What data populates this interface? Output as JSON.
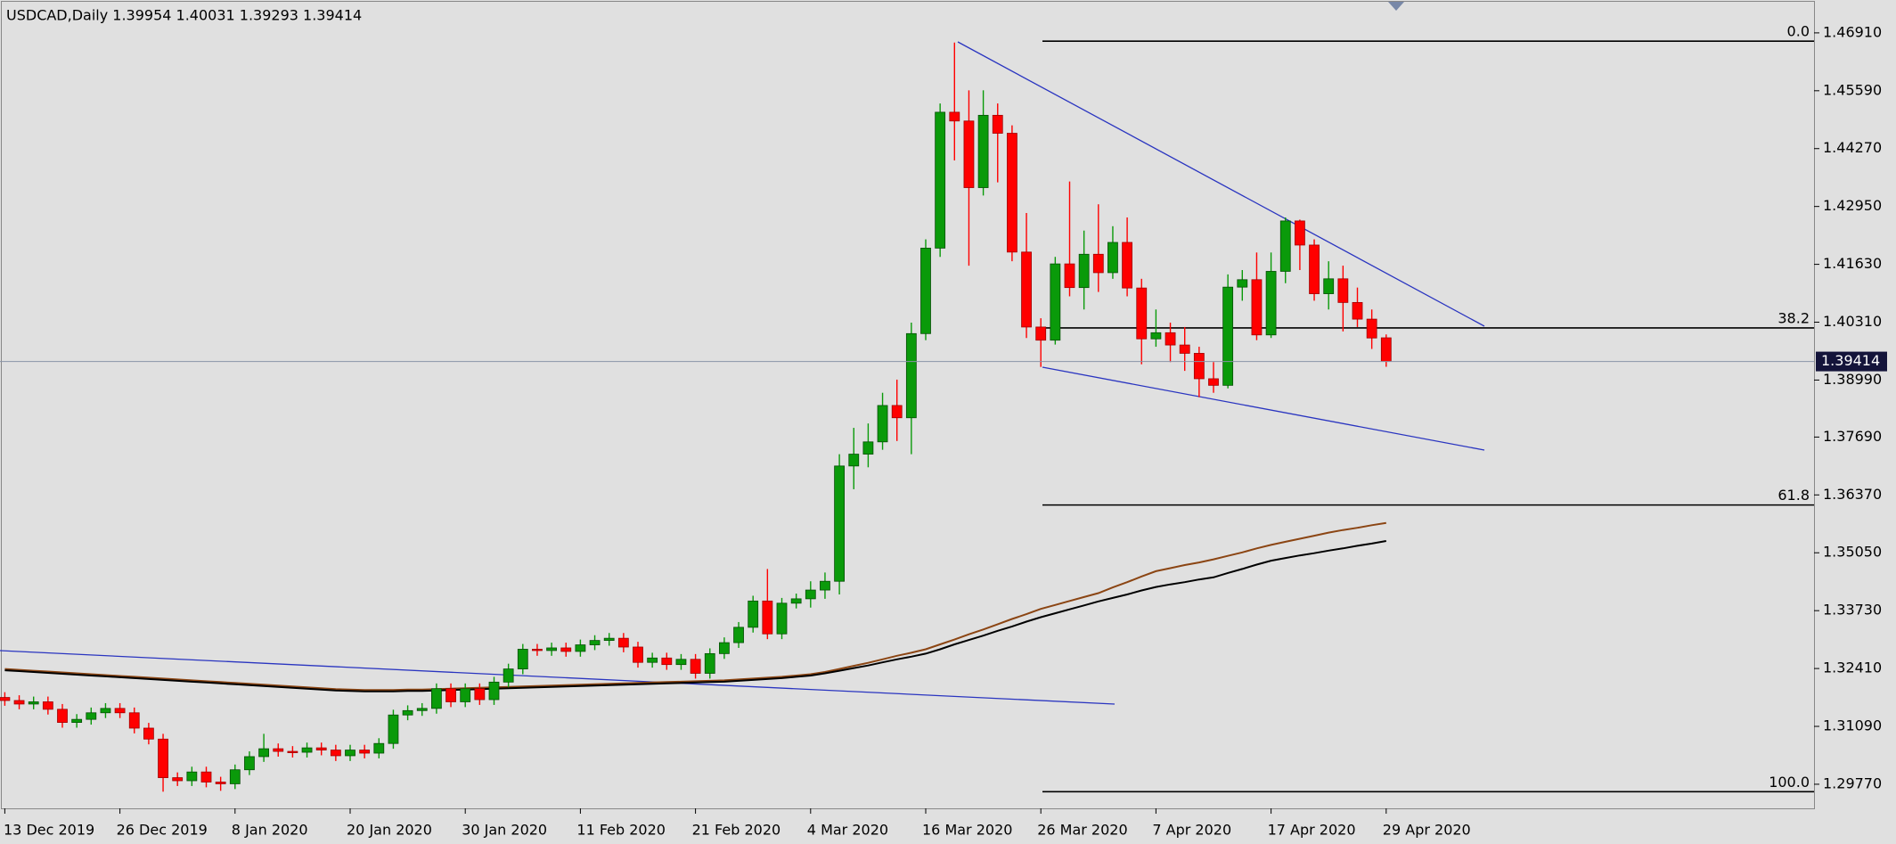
{
  "chart_data": {
    "type": "candlestick",
    "title": "USDCAD,Daily  1.39954 1.40031 1.39293 1.39414",
    "categories": [
      "13 Dec 2019",
      null,
      null,
      null,
      null,
      null,
      null,
      null,
      "26 Dec 2019",
      null,
      null,
      null,
      null,
      null,
      null,
      null,
      "8 Jan 2020",
      null,
      null,
      null,
      null,
      null,
      null,
      null,
      "20 Jan 2020",
      null,
      null,
      null,
      null,
      null,
      null,
      null,
      "30 Jan 2020",
      null,
      null,
      null,
      null,
      null,
      null,
      null,
      "11 Feb 2020",
      null,
      null,
      null,
      null,
      null,
      null,
      null,
      "21 Feb 2020",
      null,
      null,
      null,
      null,
      null,
      null,
      null,
      "4 Mar 2020",
      null,
      null,
      null,
      null,
      null,
      null,
      null,
      "16 Mar 2020",
      null,
      null,
      null,
      null,
      null,
      null,
      null,
      "26 Mar 2020",
      null,
      null,
      null,
      null,
      null,
      null,
      null,
      "7 Apr 2020",
      null,
      null,
      null,
      null,
      null,
      null,
      null,
      "17 Apr 2020",
      null,
      null,
      null,
      null,
      null,
      null,
      null,
      "29 Apr 2020"
    ],
    "open": [
      1.3175,
      1.3168,
      1.316,
      1.3165,
      1.3148,
      1.3118,
      1.3125,
      1.314,
      1.315,
      1.314,
      1.3105,
      1.308,
      1.2992,
      1.2985,
      1.3005,
      1.2982,
      1.2978,
      1.301,
      1.304,
      1.3058,
      1.3052,
      1.305,
      1.306,
      1.3055,
      1.3042,
      1.3055,
      1.3048,
      1.307,
      1.3135,
      1.3145,
      1.315,
      1.3195,
      1.3165,
      1.3195,
      1.317,
      1.321,
      1.324,
      1.3285,
      1.3282,
      1.3288,
      1.328,
      1.3295,
      1.3305,
      1.331,
      1.329,
      1.3255,
      1.3265,
      1.325,
      1.3262,
      1.323,
      1.3275,
      1.33,
      1.3335,
      1.3395,
      1.332,
      1.339,
      1.34,
      1.342,
      1.344,
      1.3703,
      1.373,
      1.3758,
      1.3841,
      1.3813,
      1.4005,
      1.42,
      1.451,
      1.449,
      1.4338,
      1.4503,
      1.4462,
      1.4191,
      1.402,
      1.399,
      1.4164,
      1.411,
      1.4186,
      1.4144,
      1.4213,
      1.4109,
      1.3993,
      1.4007,
      1.3979,
      1.396,
      1.3902,
      1.3887,
      1.4111,
      1.4128,
      1.4002,
      1.4147,
      1.4262,
      1.4207,
      1.4096,
      1.413,
      1.4076,
      1.4038,
      1.39954
    ],
    "high": [
      1.3187,
      1.318,
      1.3177,
      1.3177,
      1.316,
      1.3137,
      1.3152,
      1.3162,
      1.3162,
      1.3152,
      1.3117,
      1.3092,
      1.3004,
      1.3017,
      1.3017,
      1.2994,
      1.3022,
      1.3052,
      1.3092,
      1.307,
      1.3064,
      1.3072,
      1.3072,
      1.3067,
      1.3067,
      1.3067,
      1.3082,
      1.3147,
      1.3157,
      1.3162,
      1.3207,
      1.3207,
      1.3207,
      1.3207,
      1.3222,
      1.3252,
      1.3297,
      1.3297,
      1.33,
      1.33,
      1.3307,
      1.3317,
      1.3322,
      1.3322,
      1.3302,
      1.3277,
      1.3277,
      1.3274,
      1.3274,
      1.3287,
      1.3312,
      1.3347,
      1.3407,
      1.3468,
      1.3402,
      1.3412,
      1.344,
      1.346,
      1.373,
      1.379,
      1.38,
      1.387,
      1.39,
      1.403,
      1.422,
      1.453,
      1.4669,
      1.456,
      1.456,
      1.453,
      1.448,
      1.428,
      1.404,
      1.418,
      1.4352,
      1.424,
      1.43,
      1.425,
      1.427,
      1.413,
      1.406,
      1.403,
      1.402,
      1.3975,
      1.394,
      1.414,
      1.415,
      1.419,
      1.419,
      1.427,
      1.4265,
      1.422,
      1.417,
      1.416,
      1.411,
      1.406,
      1.40031
    ],
    "low": [
      1.3156,
      1.3148,
      1.3148,
      1.3136,
      1.3106,
      1.3106,
      1.3113,
      1.3128,
      1.3128,
      1.3093,
      1.3068,
      1.296,
      1.2973,
      1.2973,
      1.297,
      1.2962,
      1.2966,
      1.2998,
      1.3028,
      1.304,
      1.3038,
      1.3038,
      1.3043,
      1.303,
      1.303,
      1.3036,
      1.3036,
      1.3058,
      1.3123,
      1.3133,
      1.3138,
      1.3153,
      1.3153,
      1.3158,
      1.3158,
      1.3198,
      1.3228,
      1.327,
      1.327,
      1.3268,
      1.3268,
      1.3283,
      1.3293,
      1.3278,
      1.3243,
      1.3243,
      1.3238,
      1.3238,
      1.3218,
      1.3218,
      1.3263,
      1.3288,
      1.3323,
      1.3308,
      1.3308,
      1.3378,
      1.338,
      1.34,
      1.341,
      1.365,
      1.37,
      1.374,
      1.376,
      1.373,
      1.399,
      1.418,
      1.44,
      1.416,
      1.432,
      1.435,
      1.417,
      1.3995,
      1.3929,
      1.398,
      1.409,
      1.406,
      1.41,
      1.413,
      1.409,
      1.3935,
      1.3975,
      1.394,
      1.392,
      1.386,
      1.387,
      1.388,
      1.408,
      1.399,
      1.3995,
      1.412,
      1.415,
      1.408,
      1.406,
      1.401,
      1.402,
      1.397,
      1.39293
    ],
    "close": [
      1.3168,
      1.316,
      1.3165,
      1.3148,
      1.3118,
      1.3125,
      1.314,
      1.315,
      1.314,
      1.3105,
      1.308,
      1.2992,
      1.2985,
      1.3005,
      1.2982,
      1.2978,
      1.301,
      1.304,
      1.3058,
      1.3052,
      1.305,
      1.306,
      1.3055,
      1.3042,
      1.3055,
      1.3048,
      1.307,
      1.3135,
      1.3145,
      1.315,
      1.3195,
      1.3165,
      1.3195,
      1.317,
      1.321,
      1.324,
      1.3285,
      1.3282,
      1.3288,
      1.328,
      1.3295,
      1.3305,
      1.331,
      1.329,
      1.3255,
      1.3265,
      1.325,
      1.3262,
      1.323,
      1.3275,
      1.33,
      1.3335,
      1.3395,
      1.332,
      1.339,
      1.34,
      1.342,
      1.344,
      1.3703,
      1.373,
      1.3758,
      1.3841,
      1.3813,
      1.4005,
      1.42,
      1.451,
      1.449,
      1.4338,
      1.4503,
      1.4462,
      1.4191,
      1.402,
      1.399,
      1.4164,
      1.411,
      1.4186,
      1.4144,
      1.4213,
      1.4109,
      1.3993,
      1.4007,
      1.3979,
      1.396,
      1.3902,
      1.3887,
      1.4111,
      1.4128,
      1.4002,
      1.4147,
      1.4262,
      1.4207,
      1.4096,
      1.413,
      1.4076,
      1.4038,
      1.3995,
      1.39414
    ],
    "up_color": "#0a9a0a",
    "down_color": "#ff0000",
    "moving_averages": [
      {
        "color": "#8b4513",
        "values": [
          1.324,
          1.3238,
          1.3236,
          1.3234,
          1.3232,
          1.323,
          1.3228,
          1.3226,
          1.3224,
          1.3222,
          1.322,
          1.3218,
          1.3216,
          1.3214,
          1.3212,
          1.321,
          1.3208,
          1.3206,
          1.3204,
          1.3202,
          1.32,
          1.3198,
          1.3196,
          1.3194,
          1.3193,
          1.3192,
          1.3192,
          1.3192,
          1.3193,
          1.3193,
          1.3194,
          1.3195,
          1.3196,
          1.3197,
          1.3198,
          1.3199,
          1.32,
          1.3201,
          1.3202,
          1.3203,
          1.3204,
          1.3205,
          1.3206,
          1.3207,
          1.3208,
          1.3209,
          1.321,
          1.3211,
          1.3212,
          1.3213,
          1.3214,
          1.3216,
          1.3218,
          1.322,
          1.3222,
          1.3225,
          1.3228,
          1.3233,
          1.324,
          1.3247,
          1.3254,
          1.3262,
          1.327,
          1.3277,
          1.3285,
          1.3296,
          1.3307,
          1.3319,
          1.333,
          1.3342,
          1.3354,
          1.3365,
          1.3377,
          1.3386,
          1.3395,
          1.3404,
          1.3413,
          1.3426,
          1.3438,
          1.3451,
          1.3463,
          1.347,
          1.3477,
          1.3483,
          1.349,
          1.3498,
          1.3506,
          1.3515,
          1.3523,
          1.353,
          1.3537,
          1.3544,
          1.3551,
          1.3557,
          1.3562,
          1.3568,
          1.3573
        ]
      },
      {
        "color": "#000000",
        "values": [
          1.3237,
          1.3235,
          1.3233,
          1.3231,
          1.3229,
          1.3227,
          1.3225,
          1.3223,
          1.3221,
          1.3219,
          1.3217,
          1.3215,
          1.3213,
          1.3211,
          1.3209,
          1.3207,
          1.3205,
          1.3203,
          1.3201,
          1.3199,
          1.3197,
          1.3195,
          1.3193,
          1.3191,
          1.319,
          1.3189,
          1.3189,
          1.3189,
          1.319,
          1.319,
          1.3191,
          1.3192,
          1.3193,
          1.3194,
          1.3195,
          1.3196,
          1.3197,
          1.3198,
          1.3199,
          1.32,
          1.3201,
          1.3202,
          1.3203,
          1.3204,
          1.3205,
          1.3206,
          1.3207,
          1.3208,
          1.3209,
          1.321,
          1.3211,
          1.3213,
          1.3215,
          1.3217,
          1.3219,
          1.3222,
          1.3225,
          1.323,
          1.3236,
          1.3242,
          1.3248,
          1.3255,
          1.3262,
          1.3268,
          1.3275,
          1.3285,
          1.3296,
          1.3306,
          1.3316,
          1.3327,
          1.3337,
          1.3348,
          1.3358,
          1.3367,
          1.3376,
          1.3385,
          1.3394,
          1.3402,
          1.341,
          1.3419,
          1.3427,
          1.3433,
          1.3438,
          1.3444,
          1.3449,
          1.3459,
          1.3468,
          1.3478,
          1.3487,
          1.3493,
          1.3499,
          1.3504,
          1.351,
          1.3515,
          1.3521,
          1.3526,
          1.3532
        ]
      }
    ],
    "fibonacci": [
      {
        "name": "0.0",
        "price": 1.4672
      },
      {
        "name": "38.2",
        "price": 1.4018
      },
      {
        "name": "61.8",
        "price": 1.3614
      },
      {
        "name": "100.0",
        "price": 1.296
      }
    ],
    "ylim": [
      1.2922,
      1.4766
    ],
    "yticks": [
      {
        "value": 1.4691,
        "label": "1.46910"
      },
      {
        "value": 1.4559,
        "label": "1.45590"
      },
      {
        "value": 1.4427,
        "label": "1.44270"
      },
      {
        "value": 1.4295,
        "label": "1.42950"
      },
      {
        "value": 1.4163,
        "label": "1.41630"
      },
      {
        "value": 1.4031,
        "label": "1.40310"
      },
      {
        "value": 1.3899,
        "label": "1.38990"
      },
      {
        "value": 1.3769,
        "label": "1.37690"
      },
      {
        "value": 1.3637,
        "label": "1.36370"
      },
      {
        "value": 1.3505,
        "label": "1.35050"
      },
      {
        "value": 1.3373,
        "label": "1.33730"
      },
      {
        "value": 1.3241,
        "label": "1.32410"
      },
      {
        "value": 1.3109,
        "label": "1.31090"
      },
      {
        "value": 1.2977,
        "label": "1.29770"
      }
    ],
    "grid": false
  }
}
